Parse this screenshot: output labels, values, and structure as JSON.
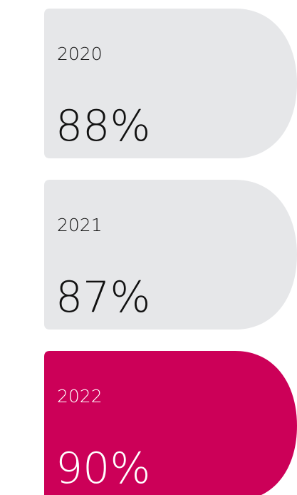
{
  "items": [
    {
      "year": "2020",
      "value": "88%",
      "color": "#e6e7e9"
    },
    {
      "year": "2021",
      "value": "87%",
      "color": "#e6e7e9"
    },
    {
      "year": "2022",
      "value": "90%",
      "color": "#cc0058"
    }
  ]
}
